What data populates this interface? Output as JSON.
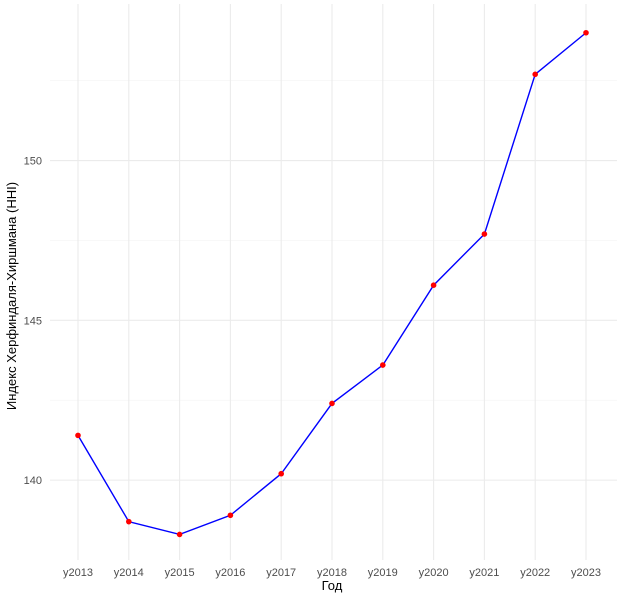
{
  "chart_data": {
    "type": "line",
    "title": "",
    "xlabel": "Год",
    "ylabel": "Индекс Херфиндаля-Хиршмана (HHI)",
    "categories": [
      "y2013",
      "y2014",
      "y2015",
      "y2016",
      "y2017",
      "y2018",
      "y2019",
      "y2020",
      "y2021",
      "y2022",
      "y2023"
    ],
    "series": [
      {
        "values": [
          141.4,
          138.7,
          138.3,
          138.9,
          140.2,
          142.4,
          143.6,
          146.1,
          147.7,
          152.7,
          154.0
        ]
      }
    ],
    "yticks": [
      140,
      145,
      150
    ],
    "ylim": [
      137.5,
      154.9
    ],
    "grid": true,
    "legend": "none",
    "colors": {
      "line": "#0000ff",
      "points": "#ff0000",
      "grid": "#ebebeb"
    }
  }
}
